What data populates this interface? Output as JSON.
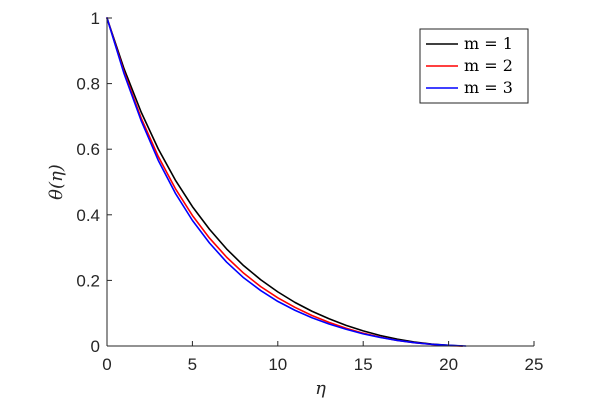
{
  "chart_data": {
    "type": "line",
    "xlabel": "η",
    "ylabel": "θ(η)",
    "xlim": [
      0,
      25
    ],
    "ylim": [
      0,
      1
    ],
    "xticks": [
      "0",
      "5",
      "10",
      "15",
      "20",
      "25"
    ],
    "yticks": [
      "0",
      "0.2",
      "0.4",
      "0.6",
      "0.8",
      "1"
    ],
    "grid": false,
    "legend_position": "top-right",
    "series": [
      {
        "name": "m = 1",
        "color": "#000000",
        "x": [
          0,
          1,
          2,
          3,
          4,
          5,
          6,
          7,
          8,
          9,
          10,
          11,
          12,
          13,
          14,
          15,
          16,
          17,
          18,
          19,
          20,
          20.8
        ],
        "y": [
          1.0,
          0.845,
          0.713,
          0.601,
          0.506,
          0.425,
          0.356,
          0.296,
          0.245,
          0.202,
          0.165,
          0.133,
          0.106,
          0.083,
          0.063,
          0.046,
          0.032,
          0.021,
          0.012,
          0.006,
          0.002,
          0.0
        ]
      },
      {
        "name": "m = 2",
        "color": "#ff0000",
        "x": [
          0,
          1,
          2,
          3,
          4,
          5,
          6,
          7,
          8,
          9,
          10,
          11,
          12,
          13,
          14,
          15,
          16,
          17,
          18,
          19,
          20,
          20.8
        ],
        "y": [
          1.0,
          0.835,
          0.695,
          0.578,
          0.48,
          0.398,
          0.329,
          0.271,
          0.222,
          0.181,
          0.147,
          0.118,
          0.093,
          0.072,
          0.054,
          0.039,
          0.027,
          0.017,
          0.01,
          0.005,
          0.001,
          0.0
        ]
      },
      {
        "name": "m = 3",
        "color": "#0000ff",
        "x": [
          0,
          1,
          2,
          3,
          4,
          5,
          6,
          7,
          8,
          9,
          10,
          11,
          12,
          13,
          14,
          15,
          16,
          17,
          18,
          19,
          20,
          21
        ],
        "y": [
          1.0,
          0.83,
          0.687,
          0.566,
          0.466,
          0.383,
          0.314,
          0.256,
          0.208,
          0.169,
          0.136,
          0.109,
          0.086,
          0.067,
          0.051,
          0.037,
          0.026,
          0.017,
          0.01,
          0.005,
          0.002,
          0.0
        ]
      }
    ]
  }
}
